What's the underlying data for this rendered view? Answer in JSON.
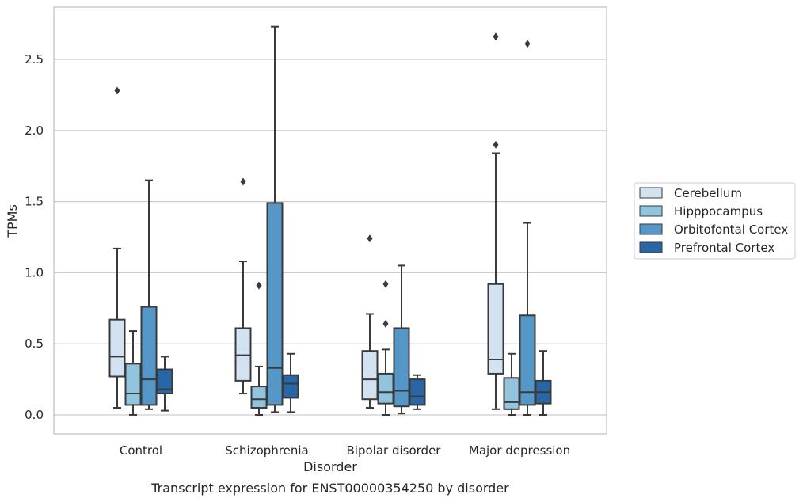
{
  "chart_data": {
    "type": "box",
    "caption": "Transcript expression for ENST00000354250 by disorder",
    "xlabel": "Disorder",
    "ylabel": "TPMs",
    "ylim": [
      -0.13,
      2.87
    ],
    "yticks": [
      0.0,
      0.5,
      1.0,
      1.5,
      2.0,
      2.5
    ],
    "ytick_labels": [
      "0.0",
      "0.5",
      "1.0",
      "1.5",
      "2.0",
      "2.5"
    ],
    "grid": "horizontal",
    "legend_position": "right",
    "categories": [
      "Control",
      "Schizophrenia",
      "Bipolar disorder",
      "Major depression"
    ],
    "series": [
      {
        "name": "Cerebellum",
        "color": "#d2e2f0",
        "boxes": [
          {
            "whislo": 0.05,
            "q1": 0.27,
            "med": 0.41,
            "q3": 0.67,
            "whishi": 1.17,
            "fliers": [
              2.28
            ]
          },
          {
            "whislo": 0.15,
            "q1": 0.24,
            "med": 0.42,
            "q3": 0.61,
            "whishi": 1.08,
            "fliers": [
              1.64
            ]
          },
          {
            "whislo": 0.05,
            "q1": 0.11,
            "med": 0.25,
            "q3": 0.45,
            "whishi": 0.71,
            "fliers": [
              1.24
            ]
          },
          {
            "whislo": 0.04,
            "q1": 0.29,
            "med": 0.39,
            "q3": 0.92,
            "whishi": 1.84,
            "fliers": [
              1.9,
              2.66
            ]
          }
        ]
      },
      {
        "name": "Hipppocampus",
        "color": "#93c4de",
        "boxes": [
          {
            "whislo": 0.0,
            "q1": 0.07,
            "med": 0.15,
            "q3": 0.36,
            "whishi": 0.59,
            "fliers": []
          },
          {
            "whislo": 0.0,
            "q1": 0.05,
            "med": 0.11,
            "q3": 0.2,
            "whishi": 0.34,
            "fliers": [
              0.91
            ]
          },
          {
            "whislo": 0.0,
            "q1": 0.08,
            "med": 0.16,
            "q3": 0.29,
            "whishi": 0.46,
            "fliers": [
              0.64,
              0.92
            ]
          },
          {
            "whislo": 0.0,
            "q1": 0.04,
            "med": 0.09,
            "q3": 0.26,
            "whishi": 0.43,
            "fliers": []
          }
        ]
      },
      {
        "name": "Orbitofontal Cortex",
        "color": "#5597c6",
        "boxes": [
          {
            "whislo": 0.04,
            "q1": 0.07,
            "med": 0.25,
            "q3": 0.76,
            "whishi": 1.65,
            "fliers": []
          },
          {
            "whislo": 0.02,
            "q1": 0.07,
            "med": 0.33,
            "q3": 1.49,
            "whishi": 2.73,
            "fliers": []
          },
          {
            "whislo": 0.01,
            "q1": 0.06,
            "med": 0.17,
            "q3": 0.61,
            "whishi": 1.05,
            "fliers": []
          },
          {
            "whislo": 0.0,
            "q1": 0.07,
            "med": 0.16,
            "q3": 0.7,
            "whishi": 1.35,
            "fliers": [
              2.61
            ]
          }
        ]
      },
      {
        "name": "Prefrontal Cortex",
        "color": "#2866a6",
        "boxes": [
          {
            "whislo": 0.03,
            "q1": 0.15,
            "med": 0.18,
            "q3": 0.32,
            "whishi": 0.41,
            "fliers": []
          },
          {
            "whislo": 0.02,
            "q1": 0.12,
            "med": 0.22,
            "q3": 0.28,
            "whishi": 0.43,
            "fliers": []
          },
          {
            "whislo": 0.04,
            "q1": 0.07,
            "med": 0.13,
            "q3": 0.25,
            "whishi": 0.28,
            "fliers": []
          },
          {
            "whislo": 0.0,
            "q1": 0.08,
            "med": 0.16,
            "q3": 0.24,
            "whishi": 0.45,
            "fliers": []
          }
        ]
      }
    ]
  }
}
